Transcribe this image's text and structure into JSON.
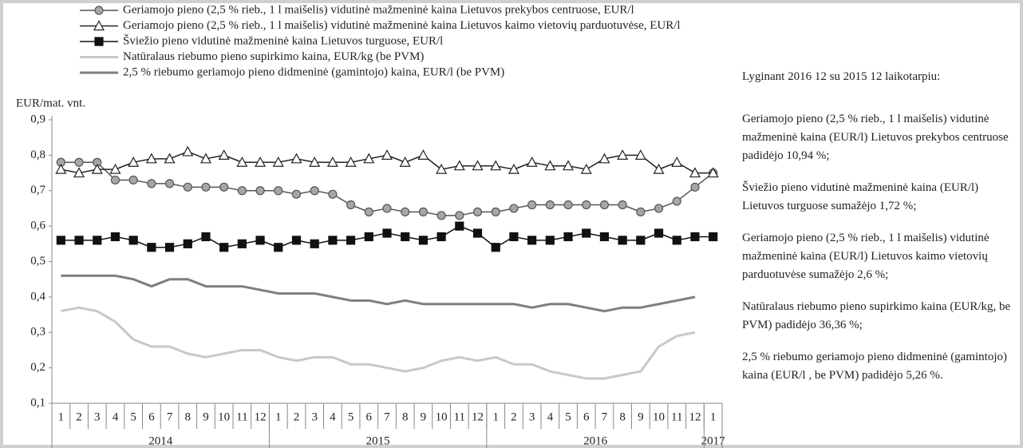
{
  "chart_data": {
    "type": "line",
    "y_label": "EUR/mat. vnt.",
    "categories": [
      "1",
      "2",
      "3",
      "4",
      "5",
      "6",
      "7",
      "8",
      "9",
      "10",
      "11",
      "12",
      "1",
      "2",
      "3",
      "4",
      "5",
      "6",
      "7",
      "8",
      "9",
      "10",
      "11",
      "12",
      "1",
      "2",
      "3",
      "4",
      "5",
      "6",
      "7",
      "8",
      "9",
      "10",
      "11",
      "12",
      "1"
    ],
    "years": [
      "2014",
      "2015",
      "2016",
      "2017"
    ],
    "ylim": [
      0.1,
      0.9
    ],
    "yticks": [
      {
        "value": 0.1,
        "label": "0,1"
      },
      {
        "value": 0.2,
        "label": "0,2"
      },
      {
        "value": 0.3,
        "label": "0,3"
      },
      {
        "value": 0.4,
        "label": "0,4"
      },
      {
        "value": 0.5,
        "label": "0,5"
      },
      {
        "value": 0.6,
        "label": "0,6"
      },
      {
        "value": 0.7,
        "label": "0,7"
      },
      {
        "value": 0.8,
        "label": "0,8"
      },
      {
        "value": 0.9,
        "label": "0,9"
      }
    ],
    "grid": false,
    "series": [
      {
        "name": "Geriamojo pieno (2,5 % rieb., 1 l maišelis) vidutinė mažmeninė kaina Lietuvos prekybos centruose, EUR/l",
        "color": "#555555",
        "marker": "circle",
        "marker_fill": "#a6a6a6",
        "values": [
          0.78,
          0.78,
          0.78,
          0.73,
          0.73,
          0.72,
          0.72,
          0.71,
          0.71,
          0.71,
          0.7,
          0.7,
          0.7,
          0.69,
          0.7,
          0.69,
          0.66,
          0.64,
          0.65,
          0.64,
          0.64,
          0.63,
          0.63,
          0.64,
          0.64,
          0.65,
          0.66,
          0.66,
          0.66,
          0.66,
          0.66,
          0.66,
          0.64,
          0.65,
          0.67,
          0.71,
          0.75
        ]
      },
      {
        "name": "Geriamojo pieno (2,5 % rieb., 1 l maišelis) vidutinė mažmeninė kaina Lietuvos kaimo vietovių parduotuvėse, EUR/l",
        "color": "#222222",
        "marker": "triangle",
        "marker_fill": "#ffffff",
        "values": [
          0.76,
          0.75,
          0.76,
          0.76,
          0.78,
          0.79,
          0.79,
          0.81,
          0.79,
          0.8,
          0.78,
          0.78,
          0.78,
          0.79,
          0.78,
          0.78,
          0.78,
          0.79,
          0.8,
          0.78,
          0.8,
          0.76,
          0.77,
          0.77,
          0.77,
          0.76,
          0.78,
          0.77,
          0.77,
          0.76,
          0.79,
          0.8,
          0.8,
          0.76,
          0.78,
          0.75,
          0.75
        ]
      },
      {
        "name": "Šviežio pieno vidutinė mažmeninė kaina Lietuvos turguose, EUR/l",
        "color": "#111111",
        "marker": "square",
        "marker_fill": "#111111",
        "values": [
          0.56,
          0.56,
          0.56,
          0.57,
          0.56,
          0.54,
          0.54,
          0.55,
          0.57,
          0.54,
          0.55,
          0.56,
          0.54,
          0.56,
          0.55,
          0.56,
          0.56,
          0.57,
          0.58,
          0.57,
          0.56,
          0.57,
          0.6,
          0.58,
          0.54,
          0.57,
          0.56,
          0.56,
          0.57,
          0.58,
          0.57,
          0.56,
          0.56,
          0.58,
          0.56,
          0.57,
          0.57
        ]
      },
      {
        "name": "Natūralaus riebumo pieno supirkimo kaina, EUR/kg (be PVM)",
        "color": "#c8c8c8",
        "marker": "none",
        "values": [
          0.36,
          0.37,
          0.36,
          0.33,
          0.28,
          0.26,
          0.26,
          0.24,
          0.23,
          0.24,
          0.25,
          0.25,
          0.23,
          0.22,
          0.23,
          0.23,
          0.21,
          0.21,
          0.2,
          0.19,
          0.2,
          0.22,
          0.23,
          0.22,
          0.23,
          0.21,
          0.21,
          0.19,
          0.18,
          0.17,
          0.17,
          0.18,
          0.19,
          0.26,
          0.29,
          0.3,
          null
        ]
      },
      {
        "name": "2,5 % riebumo geriamojo pieno didmeninė (gamintojo) kaina, EUR/l (be PVM)",
        "color": "#7f7f7f",
        "marker": "none",
        "values": [
          0.46,
          0.46,
          0.46,
          0.46,
          0.45,
          0.43,
          0.45,
          0.45,
          0.43,
          0.43,
          0.43,
          0.42,
          0.41,
          0.41,
          0.41,
          0.4,
          0.39,
          0.39,
          0.38,
          0.39,
          0.38,
          0.38,
          0.38,
          0.38,
          0.38,
          0.38,
          0.37,
          0.38,
          0.38,
          0.37,
          0.36,
          0.37,
          0.37,
          0.38,
          0.39,
          0.4,
          null
        ]
      }
    ],
    "notes_title": "Lyginant 2016 12 su 2015 12  laikotarpiu:",
    "notes": [
      "Geriamojo pieno (2,5 % rieb., 1 l maišelis) vidutinė mažmeninė kaina (EUR/l) Lietuvos prekybos centruose padidėjo 10,94 %;",
      "Šviežio pieno vidutinė mažmeninė kaina (EUR/l) Lietuvos turguose  sumažėjo 1,72 %;",
      "Geriamojo pieno (2,5 % rieb., 1 l maišelis) vidutinė mažmeninė kaina (EUR/l) Lietuvos kaimo vietovių parduotuvėse sumažėjo 2,6 %;",
      "Natūralaus riebumo pieno supirkimo kaina (EUR/kg, be PVM) padidėjo 36,36 %;",
      "2,5 % riebumo geriamojo pieno didmeninė (gamintojo) kaina (EUR/l , be PVM) padidėjo 5,26 %."
    ]
  }
}
